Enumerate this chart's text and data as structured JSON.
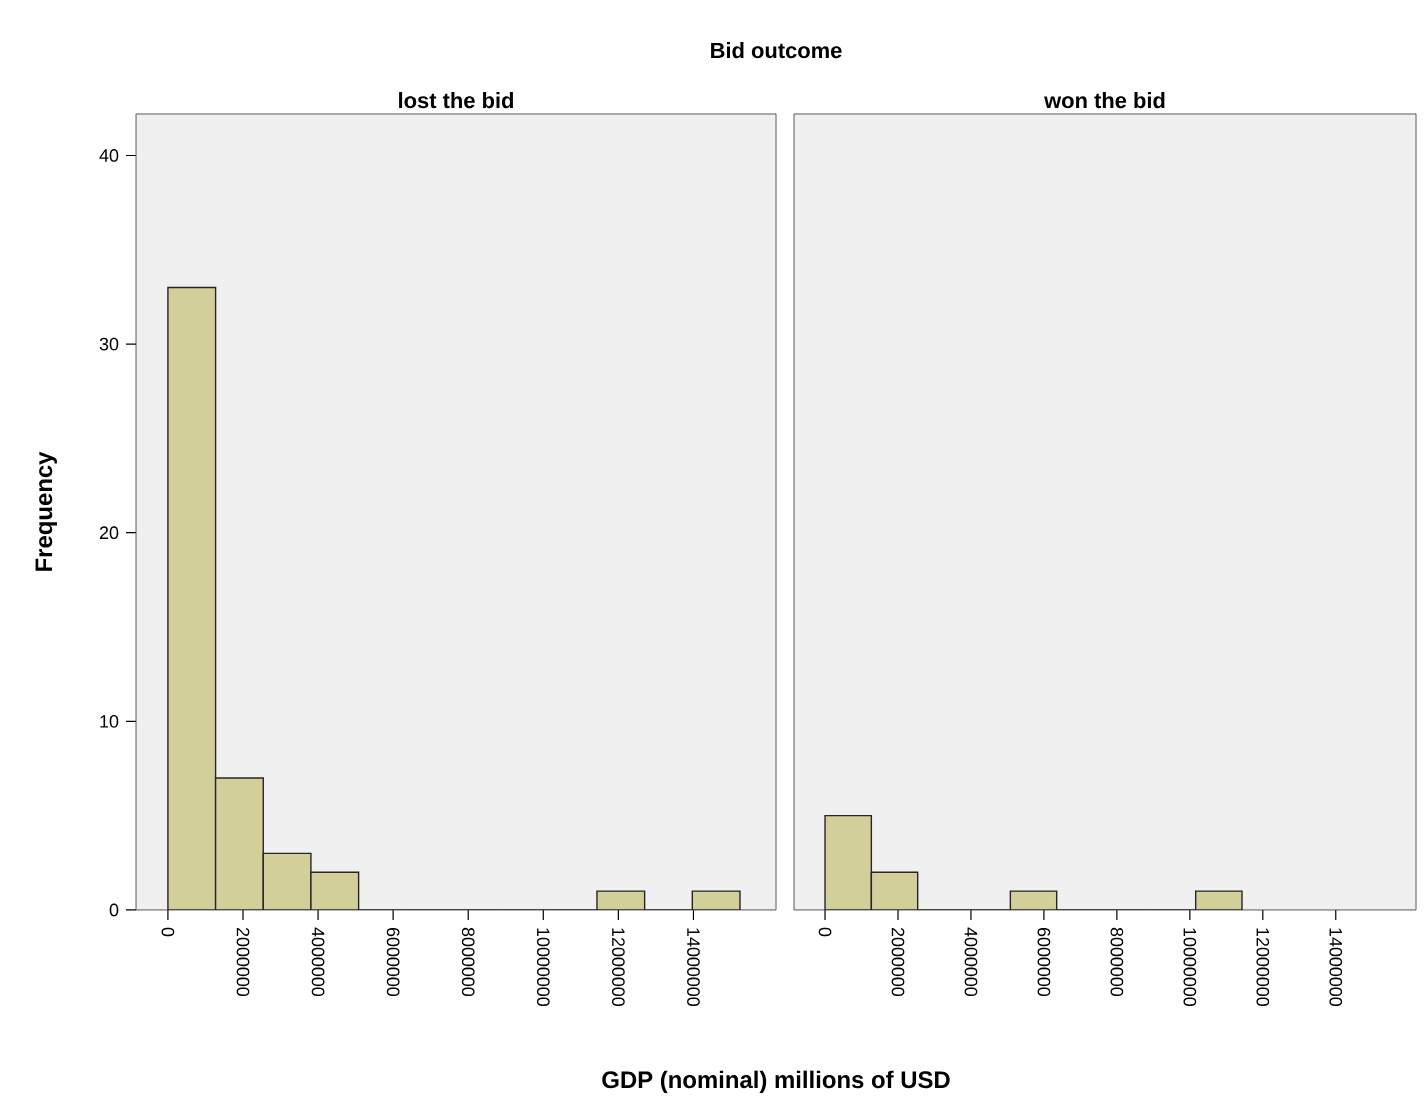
{
  "chart_data": [
    {
      "type": "histogram",
      "title": "Bid outcome",
      "subtitle": "lost the bid",
      "xlabel": "GDP (nominal) millions of USD",
      "ylabel": "Frequency",
      "color": "#d3cf9b",
      "bins": [
        0,
        1270000,
        2540000,
        3810000,
        5080000,
        6350000,
        7620000,
        8890000,
        10160000,
        11430000,
        12700000,
        13970000,
        15240000
      ],
      "values": [
        33,
        7,
        3,
        2,
        0,
        0,
        0,
        0,
        0,
        1,
        0,
        1
      ],
      "xlim": [
        -850000,
        16200000
      ],
      "xticks": [
        0,
        2000000,
        4000000,
        6000000,
        8000000,
        10000000,
        12000000,
        14000000
      ],
      "ylim": [
        0,
        42.2
      ],
      "yticks": [
        0,
        10,
        20,
        30,
        40
      ]
    },
    {
      "type": "histogram",
      "subtitle": "won the bid",
      "color": "#d3cf9b",
      "bins": [
        0,
        1270000,
        2540000,
        3810000,
        5080000,
        6350000,
        7620000,
        8890000,
        10160000,
        11430000
      ],
      "values": [
        5,
        2,
        0,
        0,
        1,
        0,
        0,
        0,
        1
      ],
      "xlim": [
        -850000,
        16200000
      ],
      "xticks": [
        0,
        2000000,
        4000000,
        6000000,
        8000000,
        10000000,
        12000000,
        14000000
      ],
      "ylim": [
        0,
        42.2
      ],
      "yticks": [
        0,
        10,
        20,
        30,
        40
      ],
      "tick_labels": "x"
    }
  ]
}
